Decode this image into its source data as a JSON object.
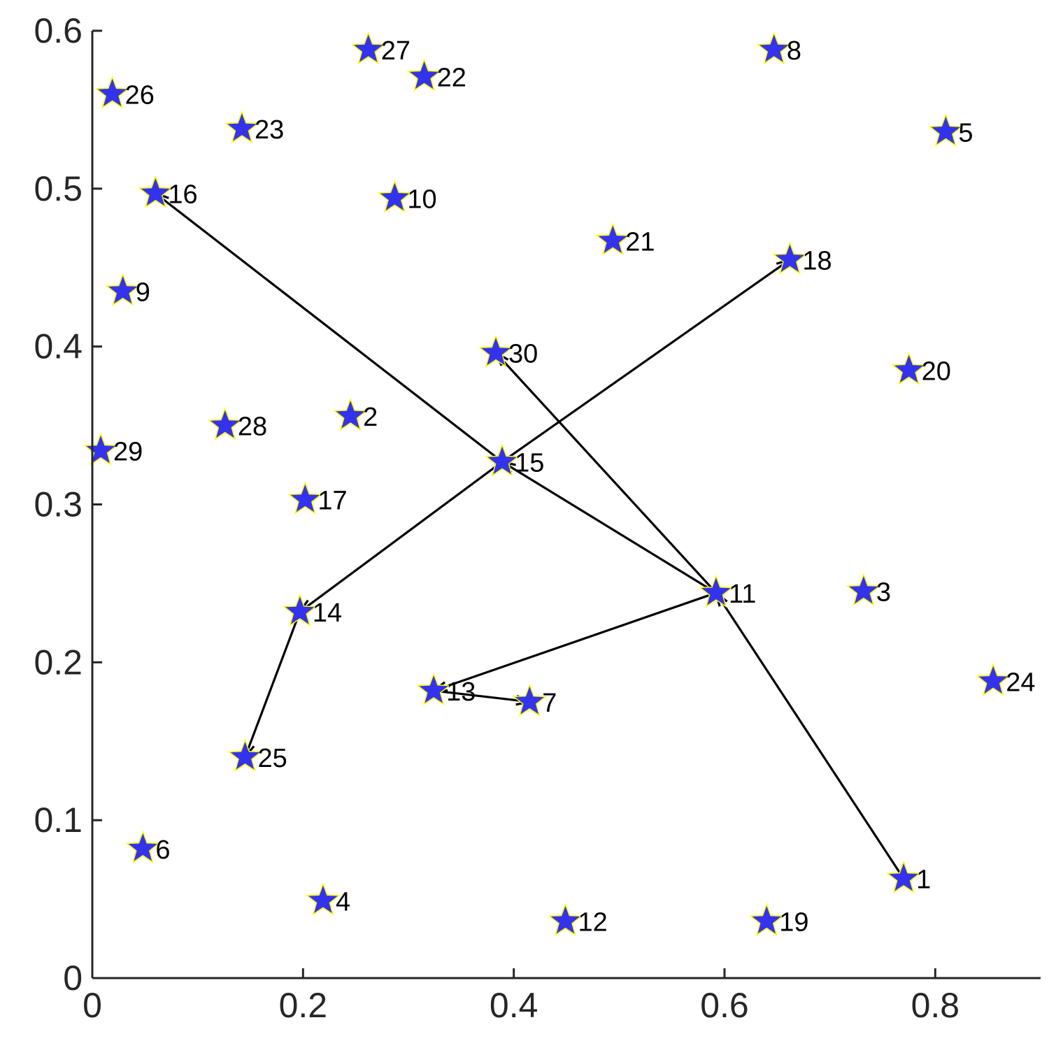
{
  "chart_data": {
    "type": "scatter",
    "title": "",
    "xlabel": "",
    "ylabel": "",
    "xlim": [
      0,
      0.9
    ],
    "ylim": [
      0,
      0.6
    ],
    "xticks": [
      0,
      0.2,
      0.4,
      0.6,
      0.8
    ],
    "xtick_labels": [
      "0",
      "0.2",
      "0.4",
      "0.6",
      "0.8"
    ],
    "yticks": [
      0,
      0.1,
      0.2,
      0.3,
      0.4,
      0.5,
      0.6
    ],
    "ytick_labels": [
      "0",
      "0.1",
      "0.2",
      "0.3",
      "0.4",
      "0.5",
      "0.6"
    ],
    "grid": false,
    "marker": "star",
    "marker_color": "#3333ee",
    "marker_edge_color": "#ffff00",
    "edge_color": "#000000",
    "points": [
      {
        "label": "1",
        "x": 0.77,
        "y": 0.063
      },
      {
        "label": "2",
        "x": 0.245,
        "y": 0.356
      },
      {
        "label": "3",
        "x": 0.732,
        "y": 0.245
      },
      {
        "label": "4",
        "x": 0.219,
        "y": 0.049
      },
      {
        "label": "5",
        "x": 0.81,
        "y": 0.536
      },
      {
        "label": "6",
        "x": 0.048,
        "y": 0.082
      },
      {
        "label": "7",
        "x": 0.415,
        "y": 0.175
      },
      {
        "label": "8",
        "x": 0.647,
        "y": 0.588
      },
      {
        "label": "9",
        "x": 0.029,
        "y": 0.435
      },
      {
        "label": "10",
        "x": 0.287,
        "y": 0.494
      },
      {
        "label": "11",
        "x": 0.592,
        "y": 0.244
      },
      {
        "label": "12",
        "x": 0.449,
        "y": 0.036
      },
      {
        "label": "13",
        "x": 0.324,
        "y": 0.182
      },
      {
        "label": "14",
        "x": 0.197,
        "y": 0.232
      },
      {
        "label": "15",
        "x": 0.389,
        "y": 0.327
      },
      {
        "label": "16",
        "x": 0.06,
        "y": 0.497
      },
      {
        "label": "17",
        "x": 0.202,
        "y": 0.303
      },
      {
        "label": "18",
        "x": 0.662,
        "y": 0.455
      },
      {
        "label": "19",
        "x": 0.64,
        "y": 0.036
      },
      {
        "label": "20",
        "x": 0.775,
        "y": 0.385
      },
      {
        "label": "21",
        "x": 0.494,
        "y": 0.467
      },
      {
        "label": "22",
        "x": 0.315,
        "y": 0.571
      },
      {
        "label": "23",
        "x": 0.142,
        "y": 0.538
      },
      {
        "label": "24",
        "x": 0.855,
        "y": 0.188
      },
      {
        "label": "25",
        "x": 0.145,
        "y": 0.14
      },
      {
        "label": "26",
        "x": 0.019,
        "y": 0.56
      },
      {
        "label": "27",
        "x": 0.262,
        "y": 0.588
      },
      {
        "label": "28",
        "x": 0.126,
        "y": 0.35
      },
      {
        "label": "29",
        "x": 0.008,
        "y": 0.334
      },
      {
        "label": "30",
        "x": 0.383,
        "y": 0.396
      }
    ],
    "arrows": [
      {
        "from": "1",
        "to": "11"
      },
      {
        "from": "11",
        "to": "30"
      },
      {
        "from": "11",
        "to": "15"
      },
      {
        "from": "15",
        "to": "16"
      },
      {
        "from": "11",
        "to": "13"
      },
      {
        "from": "13",
        "to": "7"
      },
      {
        "from": "14",
        "to": "25"
      },
      {
        "from": "15",
        "to": "14"
      },
      {
        "from": "15",
        "to": "18"
      }
    ]
  }
}
